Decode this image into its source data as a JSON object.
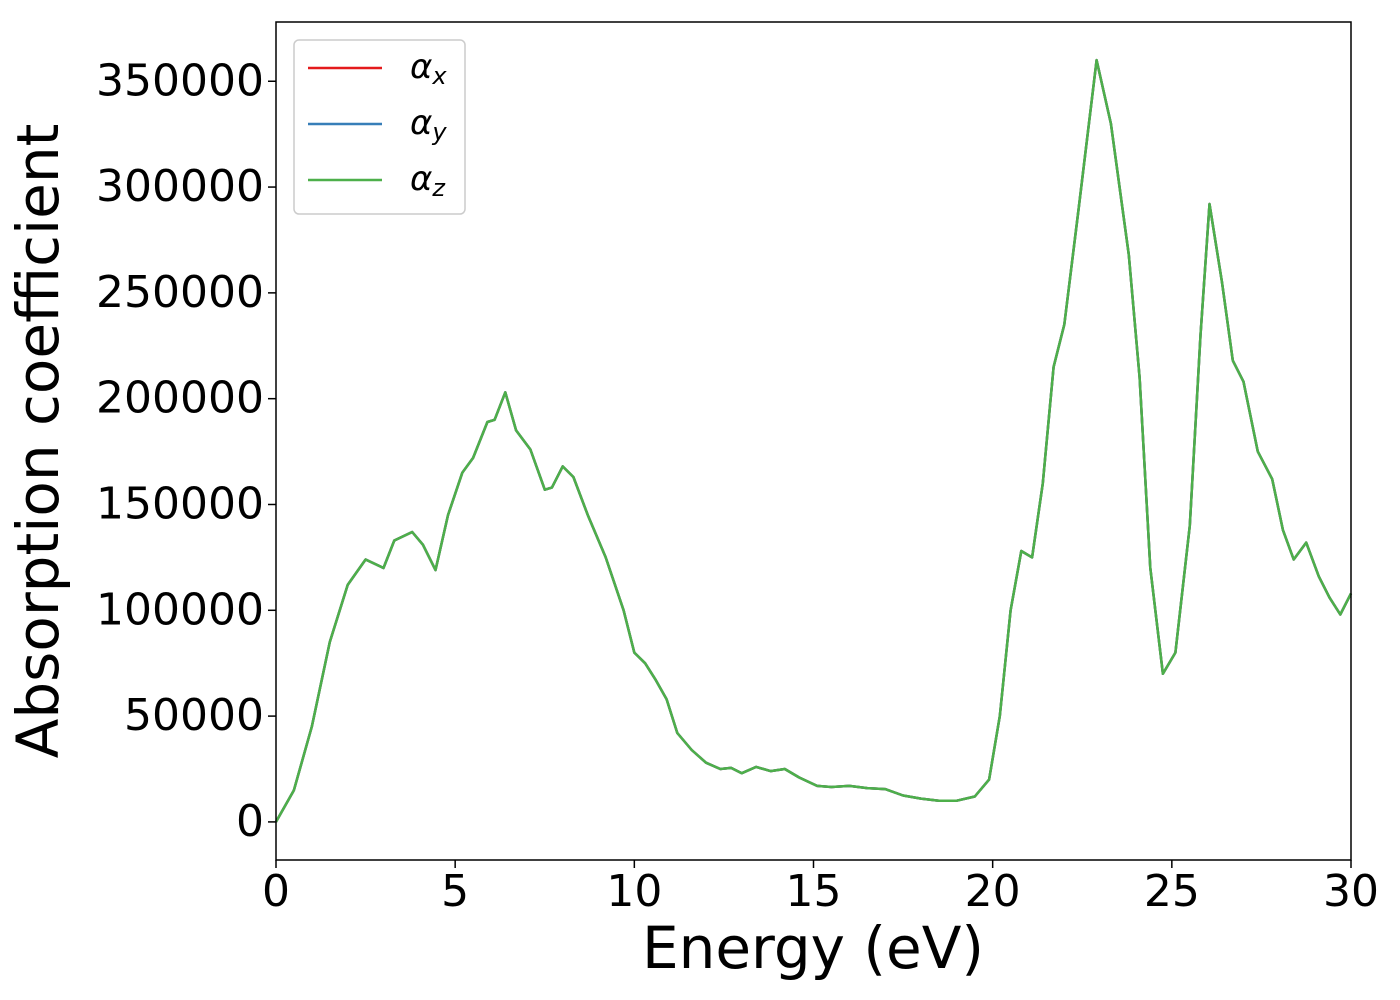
{
  "chart_data": {
    "type": "line",
    "x_label": "Energy (eV)",
    "y_label": "Absorption coefficient",
    "x": [
      0,
      0.5,
      1,
      1.5,
      2,
      2.5,
      3,
      3.3,
      3.8,
      4.1,
      4.45,
      4.8,
      5.2,
      5.5,
      5.9,
      6.1,
      6.4,
      6.7,
      7.1,
      7.5,
      7.7,
      8,
      8.3,
      8.7,
      9.2,
      9.7,
      10,
      10.3,
      10.6,
      10.9,
      11.2,
      11.6,
      12,
      12.4,
      12.7,
      13,
      13.4,
      13.8,
      14.2,
      14.6,
      15.1,
      15.5,
      16,
      16.5,
      17,
      17.5,
      18,
      18.5,
      19,
      19.5,
      19.9,
      20.2,
      20.5,
      20.8,
      21.1,
      21.4,
      21.7,
      22,
      22.4,
      22.9,
      23.3,
      23.8,
      24.1,
      24.4,
      24.75,
      25.1,
      25.5,
      25.8,
      26.05,
      26.4,
      26.7,
      27,
      27.4,
      27.8,
      28.1,
      28.4,
      28.75,
      29.1,
      29.4,
      29.7,
      30
    ],
    "series": [
      {
        "name": "αx",
        "color": "#e41a1c",
        "values": [
          0,
          15000,
          45000,
          85000,
          112000,
          124000,
          120000,
          133000,
          137000,
          131000,
          119000,
          145000,
          165000,
          172000,
          189000,
          190000,
          203000,
          185000,
          176000,
          157000,
          158000,
          168000,
          163000,
          145000,
          125000,
          100000,
          80000,
          75000,
          67000,
          58000,
          42000,
          34000,
          28000,
          25000,
          25500,
          23000,
          26000,
          24000,
          25000,
          21000,
          17000,
          16500,
          17000,
          16000,
          15500,
          12500,
          11000,
          10000,
          10000,
          12000,
          20000,
          50000,
          100000,
          128000,
          125000,
          160000,
          215000,
          235000,
          290000,
          360000,
          330000,
          268000,
          210000,
          120000,
          70000,
          80000,
          140000,
          230000,
          292000,
          255000,
          218000,
          208000,
          175000,
          162000,
          138000,
          124000,
          132000,
          116000,
          106000,
          98000,
          108000
        ]
      },
      {
        "name": "αy",
        "color": "#377eb8",
        "values": [
          0,
          15000,
          45000,
          85000,
          112000,
          124000,
          120000,
          133000,
          137000,
          131000,
          119000,
          145000,
          165000,
          172000,
          189000,
          190000,
          203000,
          185000,
          176000,
          157000,
          158000,
          168000,
          163000,
          145000,
          125000,
          100000,
          80000,
          75000,
          67000,
          58000,
          42000,
          34000,
          28000,
          25000,
          25500,
          23000,
          26000,
          24000,
          25000,
          21000,
          17000,
          16500,
          17000,
          16000,
          15500,
          12500,
          11000,
          10000,
          10000,
          12000,
          20000,
          50000,
          100000,
          128000,
          125000,
          160000,
          215000,
          235000,
          290000,
          360000,
          330000,
          268000,
          210000,
          120000,
          70000,
          80000,
          140000,
          230000,
          292000,
          255000,
          218000,
          208000,
          175000,
          162000,
          138000,
          124000,
          132000,
          116000,
          106000,
          98000,
          108000
        ]
      },
      {
        "name": "αz",
        "color": "#4daf4a",
        "values": [
          0,
          15000,
          45000,
          85000,
          112000,
          124000,
          120000,
          133000,
          137000,
          131000,
          119000,
          145000,
          165000,
          172000,
          189000,
          190000,
          203000,
          185000,
          176000,
          157000,
          158000,
          168000,
          163000,
          145000,
          125000,
          100000,
          80000,
          75000,
          67000,
          58000,
          42000,
          34000,
          28000,
          25000,
          25500,
          23000,
          26000,
          24000,
          25000,
          21000,
          17000,
          16500,
          17000,
          16000,
          15500,
          12500,
          11000,
          10000,
          10000,
          12000,
          20000,
          50000,
          100000,
          128000,
          125000,
          160000,
          215000,
          235000,
          290000,
          360000,
          330000,
          268000,
          210000,
          120000,
          70000,
          80000,
          140000,
          230000,
          292000,
          255000,
          218000,
          208000,
          175000,
          162000,
          138000,
          124000,
          132000,
          116000,
          106000,
          98000,
          108000
        ]
      }
    ],
    "xlim": [
      0,
      30
    ],
    "xticks": [
      0,
      5,
      10,
      15,
      20,
      25,
      30
    ],
    "ylim": [
      -18000,
      378000
    ],
    "yticks": [
      0,
      50000,
      100000,
      150000,
      200000,
      250000,
      300000,
      350000
    ],
    "legend": "upper left",
    "grid": false
  }
}
